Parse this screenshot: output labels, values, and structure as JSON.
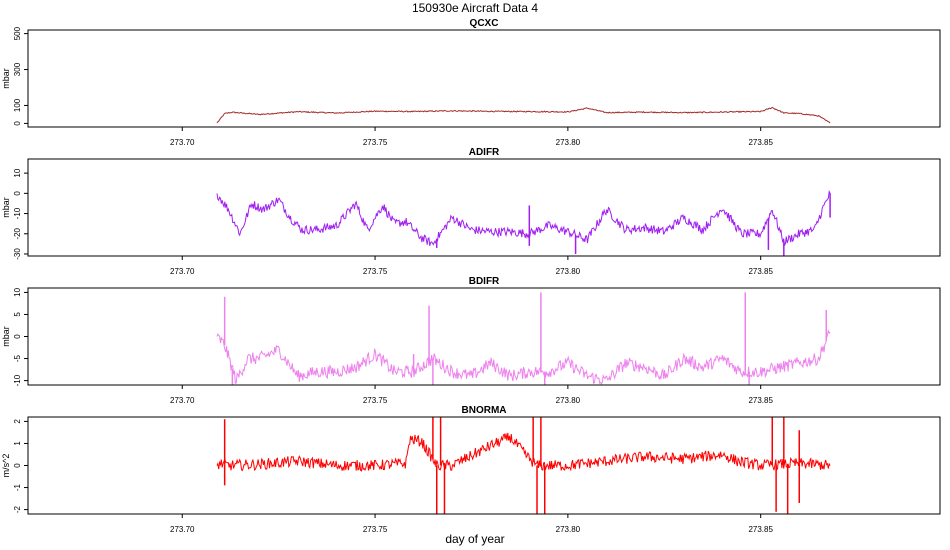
{
  "title": "150930e   Aircraft Data 4",
  "xlabel": "day of year",
  "x_ticks": [
    "273.70",
    "273.75",
    "273.80",
    "273.85"
  ],
  "chart_data": [
    {
      "type": "line",
      "title": "QCXC",
      "ylabel": "mbar",
      "color": "#a52a2a",
      "xlim": [
        273.66,
        273.8965
      ],
      "ylim": [
        -20,
        520
      ],
      "yticks": [
        "0",
        "100",
        "300",
        "500"
      ],
      "ytick_values": [
        0,
        100,
        300,
        500
      ],
      "x": [
        273.709,
        273.711,
        273.713,
        273.72,
        273.73,
        273.74,
        273.75,
        273.76,
        273.77,
        273.78,
        273.79,
        273.8,
        273.805,
        273.81,
        273.82,
        273.83,
        273.84,
        273.85,
        273.853,
        273.856,
        273.86,
        273.865,
        273.868
      ],
      "y": [
        2,
        55,
        62,
        50,
        65,
        58,
        68,
        66,
        70,
        67,
        66,
        64,
        85,
        60,
        63,
        60,
        63,
        66,
        88,
        58,
        55,
        42,
        2
      ],
      "noise": 3,
      "spikes": []
    },
    {
      "type": "line",
      "title": "ADIFR",
      "ylabel": "mbar",
      "color": "#a020f0",
      "xlim": [
        273.66,
        273.8965
      ],
      "ylim": [
        -31,
        17
      ],
      "yticks": [
        "-30",
        "-20",
        "-10",
        "0",
        "10"
      ],
      "ytick_values": [
        -30,
        -20,
        -10,
        0,
        10
      ],
      "x": [
        273.709,
        273.712,
        273.715,
        273.718,
        273.721,
        273.725,
        273.728,
        273.731,
        273.735,
        273.74,
        273.745,
        273.748,
        273.752,
        273.755,
        273.758,
        273.762,
        273.765,
        273.77,
        273.775,
        273.78,
        273.785,
        273.79,
        273.795,
        273.8,
        273.805,
        273.81,
        273.815,
        273.82,
        273.825,
        273.83,
        273.835,
        273.84,
        273.845,
        273.85,
        273.853,
        273.856,
        273.86,
        273.864,
        273.866,
        273.868
      ],
      "y": [
        0,
        -8,
        -20,
        -5,
        -8,
        -3,
        -12,
        -18,
        -18,
        -16,
        -5,
        -18,
        -6,
        -15,
        -14,
        -22,
        -25,
        -12,
        -18,
        -19,
        -19,
        -20,
        -16,
        -19,
        -23,
        -8,
        -18,
        -17,
        -19,
        -12,
        -18,
        -7,
        -20,
        -20,
        -8,
        -24,
        -20,
        -18,
        -8,
        0
      ],
      "noise": 2.2,
      "spikes": [
        [
          273.766,
          -27
        ],
        [
          273.79,
          -26
        ],
        [
          273.79,
          -6
        ],
        [
          273.802,
          -30
        ],
        [
          273.852,
          -28
        ],
        [
          273.856,
          -32
        ],
        [
          273.868,
          -12
        ]
      ]
    },
    {
      "type": "line",
      "title": "BDIFR",
      "ylabel": "mbar",
      "color": "#ee82ee",
      "xlim": [
        273.66,
        273.8965
      ],
      "ylim": [
        -11,
        11
      ],
      "yticks": [
        "-10",
        "-5",
        "0",
        "5",
        "10"
      ],
      "ytick_values": [
        -10,
        -5,
        0,
        5,
        10
      ],
      "x": [
        273.709,
        273.711,
        273.714,
        273.717,
        273.72,
        273.725,
        273.73,
        273.735,
        273.74,
        273.745,
        273.75,
        273.755,
        273.76,
        273.765,
        273.77,
        273.775,
        273.78,
        273.785,
        273.79,
        273.795,
        273.8,
        273.805,
        273.81,
        273.815,
        273.82,
        273.825,
        273.83,
        273.835,
        273.84,
        273.845,
        273.85,
        273.855,
        273.86,
        273.865,
        273.868
      ],
      "y": [
        0,
        -2,
        -10,
        -5,
        -5,
        -3,
        -9,
        -8,
        -8,
        -7,
        -4,
        -8,
        -8,
        -5,
        -8,
        -9,
        -6,
        -9,
        -8,
        -8,
        -6,
        -9,
        -10,
        -6,
        -7,
        -9,
        -5,
        -7,
        -5,
        -8,
        -8,
        -7,
        -6,
        -5,
        1
      ],
      "noise": 1.4,
      "spikes": [
        [
          273.711,
          9
        ],
        [
          273.713,
          -11
        ],
        [
          273.76,
          -4
        ],
        [
          273.764,
          7
        ],
        [
          273.765,
          -11
        ],
        [
          273.793,
          10
        ],
        [
          273.794,
          -11
        ],
        [
          273.846,
          10
        ],
        [
          273.847,
          -11
        ],
        [
          273.867,
          6
        ]
      ]
    },
    {
      "type": "line",
      "title": "BNORMA",
      "ylabel": "m/s^2",
      "color": "#ff0000",
      "xlim": [
        273.66,
        273.8965
      ],
      "ylim": [
        -2.2,
        2.2
      ],
      "yticks": [
        "-2",
        "-1",
        "0",
        "1",
        "2"
      ],
      "ytick_values": [
        -2,
        -1,
        0,
        1,
        2
      ],
      "x": [
        273.709,
        273.71,
        273.712,
        273.72,
        273.73,
        273.74,
        273.75,
        273.758,
        273.759,
        273.762,
        273.766,
        273.77,
        273.78,
        273.785,
        273.79,
        273.792,
        273.8,
        273.81,
        273.82,
        273.83,
        273.84,
        273.844,
        273.85,
        273.86,
        273.868
      ],
      "y": [
        0,
        0.1,
        0,
        0.05,
        0.2,
        0,
        0,
        0.1,
        1.2,
        1.1,
        0,
        0,
        0.9,
        1.3,
        0.3,
        0,
        0,
        0.2,
        0.4,
        0.3,
        0.5,
        0.2,
        0,
        0.1,
        0
      ],
      "noise": 0.25,
      "spikes": [
        [
          273.711,
          2.1
        ],
        [
          273.711,
          -0.9
        ],
        [
          273.765,
          2.2
        ],
        [
          273.766,
          -2.2
        ],
        [
          273.767,
          2.2
        ],
        [
          273.768,
          -2.2
        ],
        [
          273.791,
          2.2
        ],
        [
          273.792,
          -2.2
        ],
        [
          273.793,
          2.2
        ],
        [
          273.794,
          -2.2
        ],
        [
          273.853,
          2.2
        ],
        [
          273.854,
          -2.1
        ],
        [
          273.856,
          2.2
        ],
        [
          273.857,
          -2.2
        ],
        [
          273.86,
          1.6
        ],
        [
          273.86,
          -1.7
        ]
      ]
    }
  ]
}
